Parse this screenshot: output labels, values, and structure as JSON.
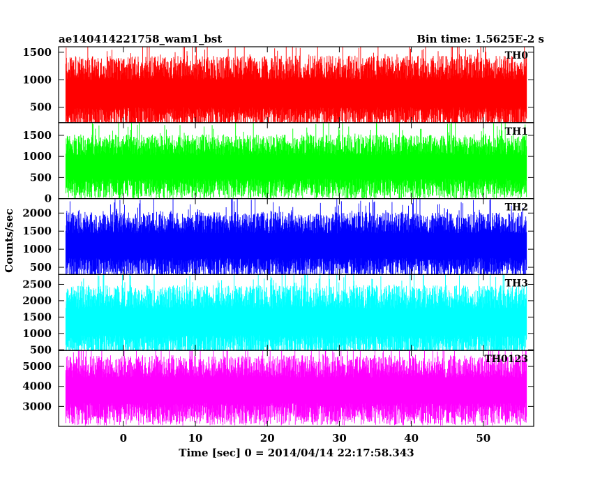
{
  "header": {
    "title": "ae140414221758_wam1_bst",
    "bin_time": "Bin time: 1.5625E-2 s"
  },
  "axes": {
    "xlabel": "Time [sec] 0 = 2014/04/14 22:17:58.343",
    "ylabel": "Counts/sec"
  },
  "chart_data": {
    "type": "line",
    "title": "ae140414221758_wam1_bst",
    "subtitle": "Bin time: 1.5625E-2 s",
    "xlabel": "Time [sec] 0 = 2014/04/14 22:17:58.343",
    "ylabel": "Counts/sec",
    "xlim": [
      -9.0,
      57.0
    ],
    "x_data_range": [
      -8.0,
      56.0
    ],
    "bin_time": 0.015625,
    "x_ticks": [
      0,
      10,
      20,
      30,
      40,
      50
    ],
    "grid": false,
    "legend": "panel labels top-right",
    "panels": [
      {
        "name": "TH0",
        "color": "#ff0000",
        "ylim": [
          220,
          1600
        ],
        "y_ticks": [
          500,
          1000,
          1500
        ],
        "typical_range": [
          150,
          1400
        ],
        "mean": 750
      },
      {
        "name": "TH1",
        "color": "#00ff00",
        "ylim": [
          0,
          1800
        ],
        "y_ticks": [
          0,
          500,
          1000,
          1500
        ],
        "typical_range": [
          200,
          1600
        ],
        "mean": 750
      },
      {
        "name": "TH2",
        "color": "#0000ff",
        "ylim": [
          300,
          2400
        ],
        "y_ticks": [
          500,
          1000,
          1500,
          2000
        ],
        "typical_range": [
          400,
          2100
        ],
        "mean": 1100
      },
      {
        "name": "TH3",
        "color": "#00ffff",
        "ylim": [
          480,
          2800
        ],
        "y_ticks": [
          500,
          1000,
          1500,
          2000,
          2500
        ],
        "typical_range": [
          550,
          2600
        ],
        "mean": 1350
      },
      {
        "name": "TH0123",
        "color": "#ff00ff",
        "ylim": [
          2000,
          5800
        ],
        "y_ticks": [
          3000,
          4000,
          5000
        ],
        "typical_range": [
          2300,
          5500
        ],
        "mean": 3800
      }
    ]
  }
}
